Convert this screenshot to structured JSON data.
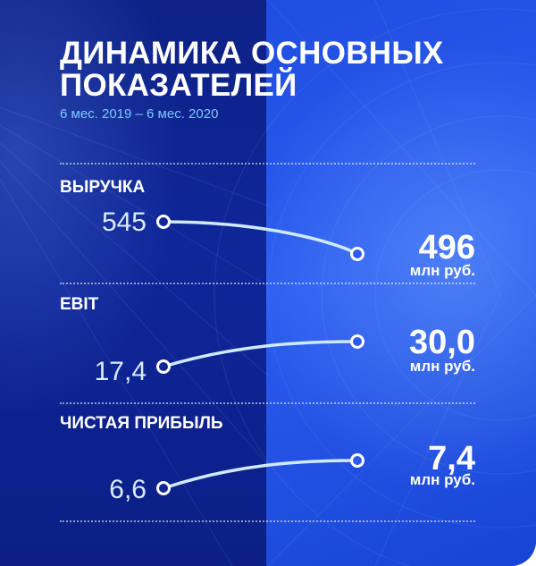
{
  "title": "ДИНАМИКА ОСНОВНЫХ ПОКАЗАТЕЛЕЙ",
  "subtitle": "6 мес. 2019 – 6 мес. 2020",
  "colors": {
    "left_panel": "#0f2699",
    "right_panel": "#2b5cf0",
    "line": "#cfe9ff",
    "subtitle": "#7fc8ff"
  },
  "chart_data": {
    "type": "line",
    "x": [
      "6 мес. 2019",
      "6 мес. 2020"
    ],
    "series": [
      {
        "name": "ВЫРУЧКА",
        "values": [
          545,
          496
        ],
        "start_label": "545",
        "end_label": "496",
        "unit": "млн руб."
      },
      {
        "name": "EBIT",
        "values": [
          17.4,
          30.0
        ],
        "start_label": "17,4",
        "end_label": "30,0",
        "unit": "млн руб."
      },
      {
        "name": "ЧИСТАЯ ПРИБЫЛЬ",
        "values": [
          6.6,
          7.4
        ],
        "start_label": "6,6",
        "end_label": "7,4",
        "unit": "млн руб."
      }
    ]
  }
}
